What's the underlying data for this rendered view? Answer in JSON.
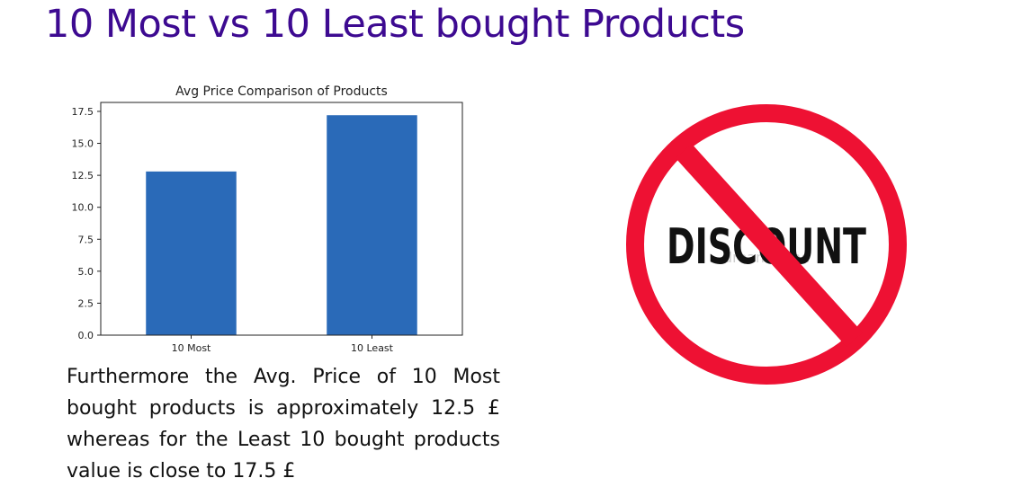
{
  "slide": {
    "title": "10 Most vs 10 Least bought Products",
    "caption": "Furthermore the Avg. Price of 10 Most bought products is approximately 12.5 £ whereas for the Least 10 bought products value is close to 17.5 £"
  },
  "chart_data": {
    "type": "bar",
    "title": "Avg Price Comparison of Products",
    "categories": [
      "10 Most",
      "10 Least"
    ],
    "values": [
      12.8,
      17.2
    ],
    "xlabel": "",
    "ylabel": "",
    "ylim": [
      0,
      18.2
    ],
    "yticks": [
      0,
      2.5,
      5,
      7.5,
      10,
      12.5,
      15,
      17.5
    ],
    "ytick_labels": [
      "0.0",
      "2.5",
      "5.0",
      "7.5",
      "10.0",
      "12.5",
      "15.0",
      "17.5"
    ],
    "bar_color": "#2a6ab8",
    "grid": false,
    "legend": "none"
  },
  "discount_sign": {
    "word": "DISCOUNT",
    "watermark": "dreamstime",
    "ring_color": "#ee1133",
    "text_color": "#111111",
    "icon": "no-discount-icon"
  }
}
